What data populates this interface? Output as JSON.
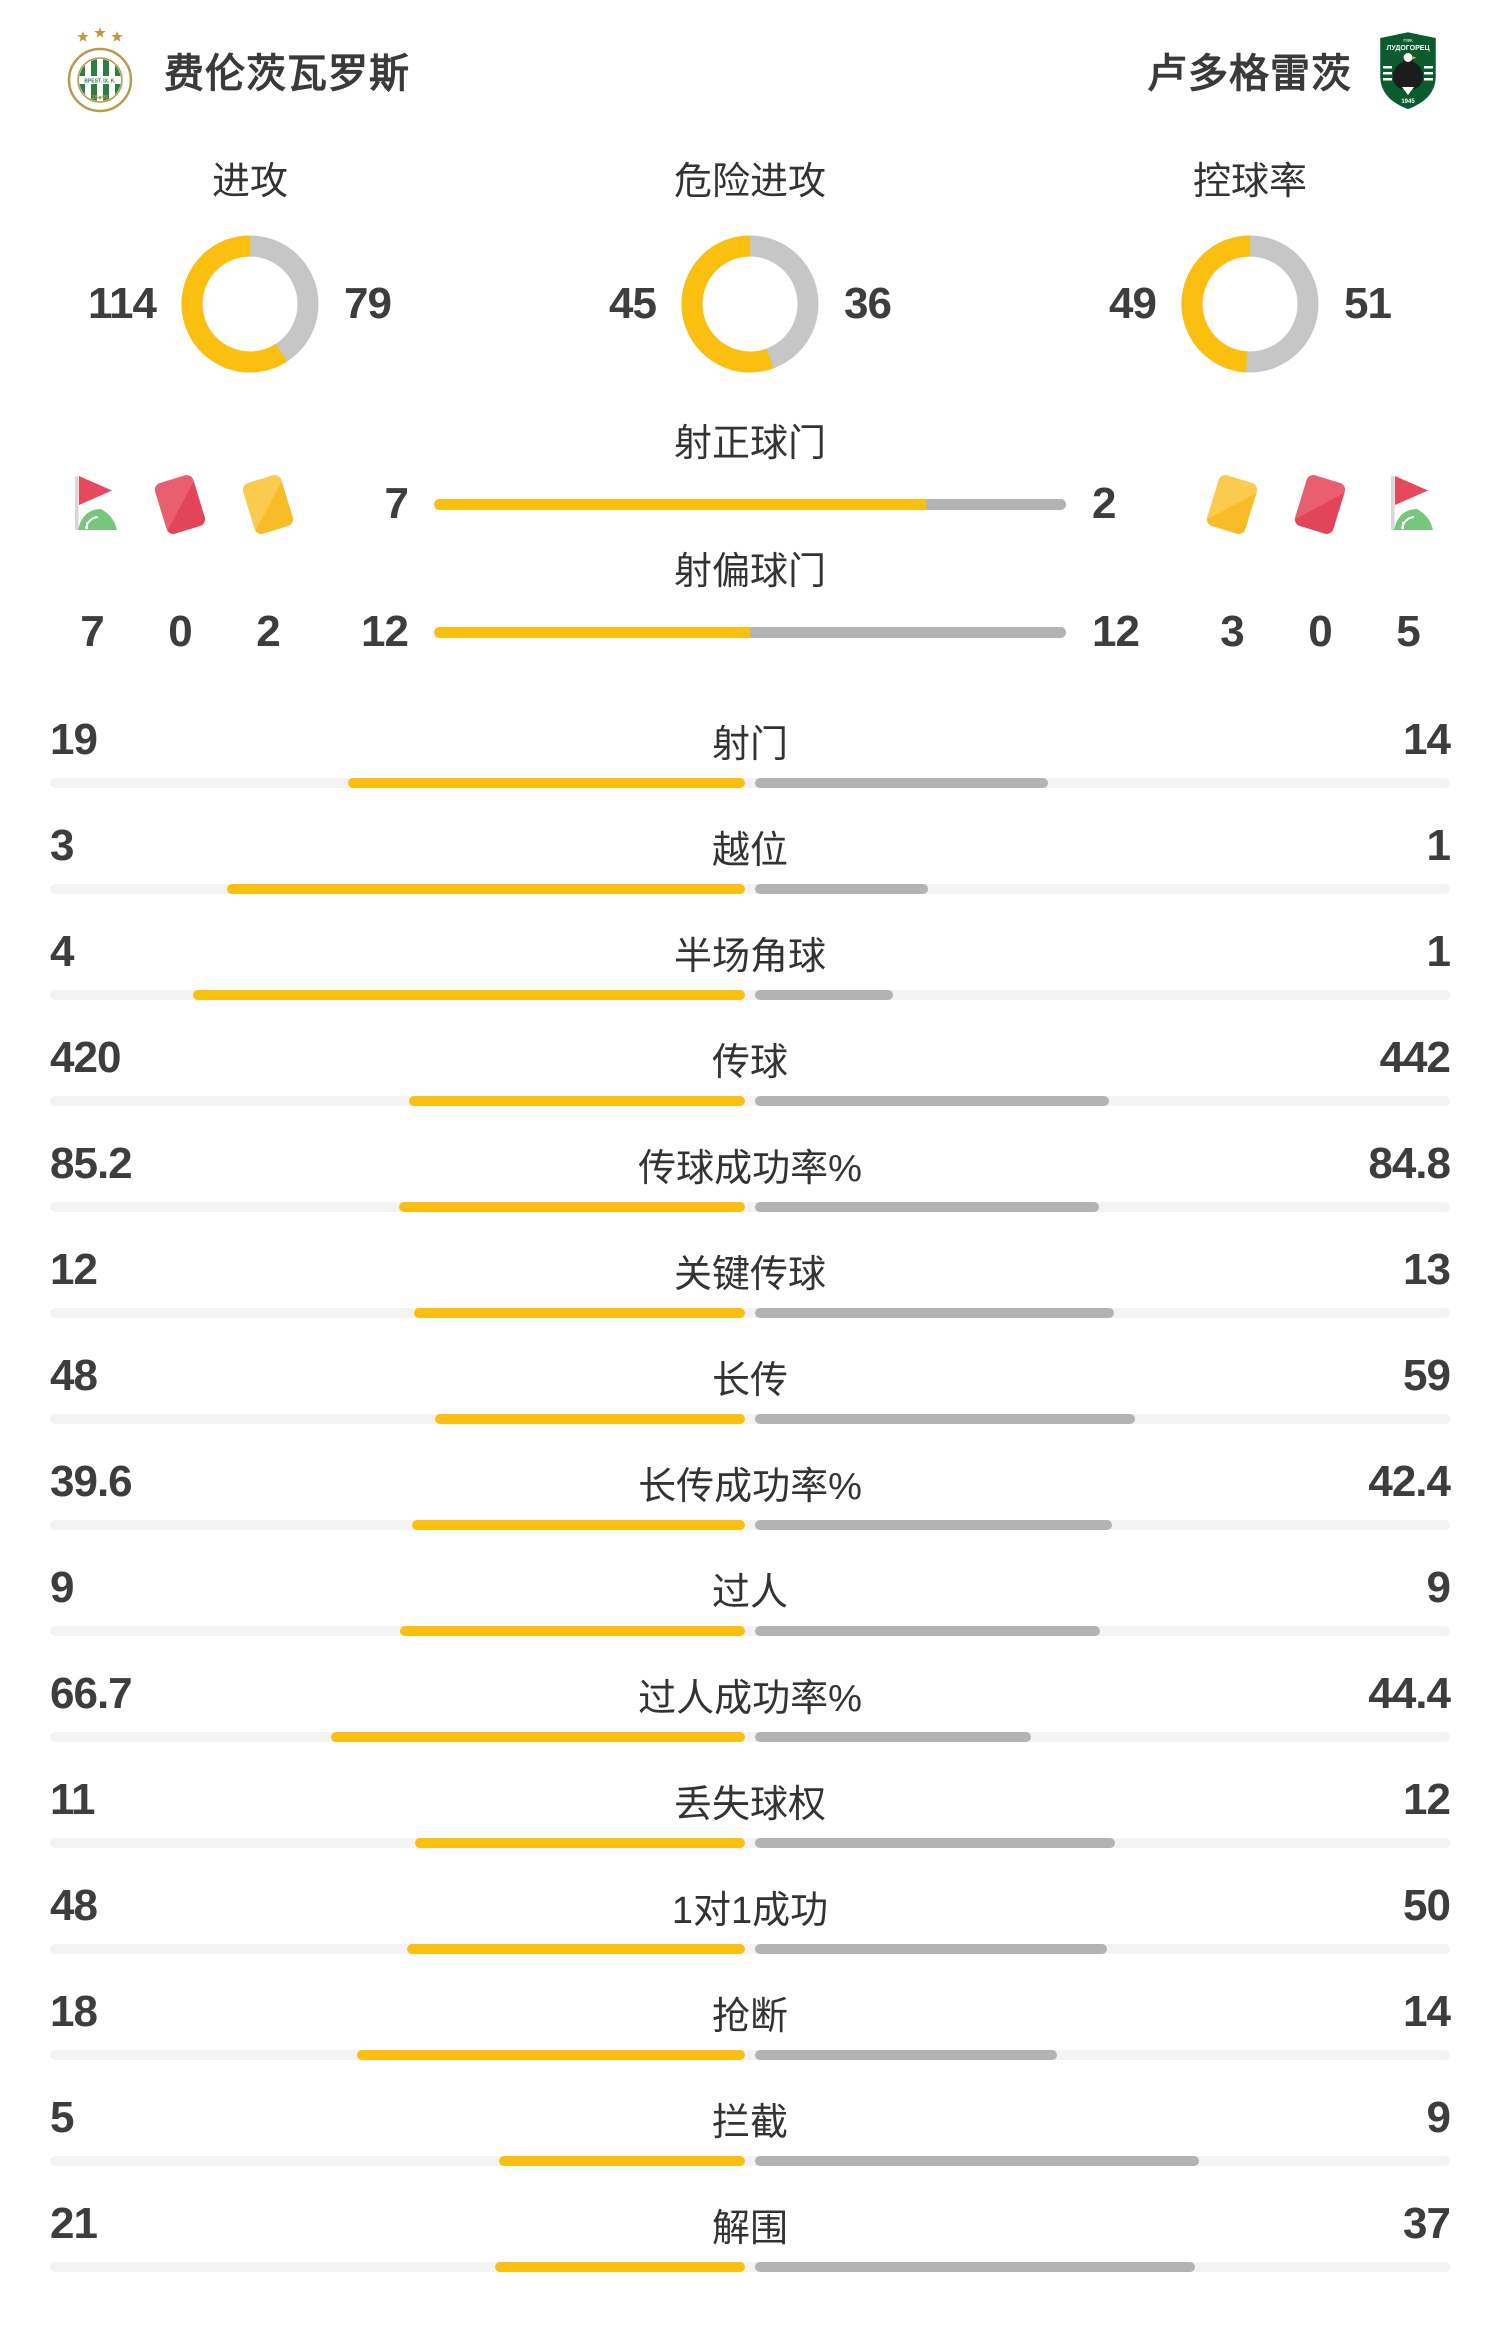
{
  "header": {
    "home_team": {
      "name": "费伦茨瓦罗斯"
    },
    "away_team": {
      "name": "卢多格雷茨"
    }
  },
  "donut_charts": [
    {
      "title": "进攻",
      "home": 114,
      "away": 79
    },
    {
      "title": "危险进攻",
      "home": 45,
      "away": 36
    },
    {
      "title": "控球率",
      "home": 49,
      "away": 51
    }
  ],
  "shot_sections": [
    {
      "title": "射正球门",
      "home": 7,
      "away": 2
    },
    {
      "title": "射偏球门",
      "home": 12,
      "away": 12
    }
  ],
  "discipline": {
    "home": [
      {
        "type": "corner-flag",
        "count": 7
      },
      {
        "type": "red-card",
        "count": 0
      },
      {
        "type": "yellow-card",
        "count": 2
      }
    ],
    "away": [
      {
        "type": "yellow-card",
        "count": 3
      },
      {
        "type": "red-card",
        "count": 0
      },
      {
        "type": "corner-flag",
        "count": 5
      }
    ]
  },
  "stats": [
    {
      "label": "射门",
      "home": "19",
      "away": "14"
    },
    {
      "label": "越位",
      "home": "3",
      "away": "1"
    },
    {
      "label": "半场角球",
      "home": "4",
      "away": "1"
    },
    {
      "label": "传球",
      "home": "420",
      "away": "442"
    },
    {
      "label": "传球成功率%",
      "home": "85.2",
      "away": "84.8"
    },
    {
      "label": "关键传球",
      "home": "12",
      "away": "13"
    },
    {
      "label": "长传",
      "home": "48",
      "away": "59"
    },
    {
      "label": "长传成功率%",
      "home": "39.6",
      "away": "42.4"
    },
    {
      "label": "过人",
      "home": "9",
      "away": "9"
    },
    {
      "label": "过人成功率%",
      "home": "66.7",
      "away": "44.4"
    },
    {
      "label": "丢失球权",
      "home": "11",
      "away": "12"
    },
    {
      "label": "1对1成功",
      "home": "48",
      "away": "50"
    },
    {
      "label": "抢断",
      "home": "18",
      "away": "14"
    },
    {
      "label": "拦截",
      "home": "5",
      "away": "9"
    },
    {
      "label": "解围",
      "home": "21",
      "away": "37"
    }
  ],
  "colors": {
    "home_accent": "#FBBF10",
    "away_accent": "#B3B3B3",
    "donut_away": "#C6C6C6",
    "track": "#F3F3F3",
    "red_card": "#E2455A",
    "yellow_card": "#F8BD26",
    "flag_red": "#E8485C",
    "flag_green": "#76C77B"
  }
}
